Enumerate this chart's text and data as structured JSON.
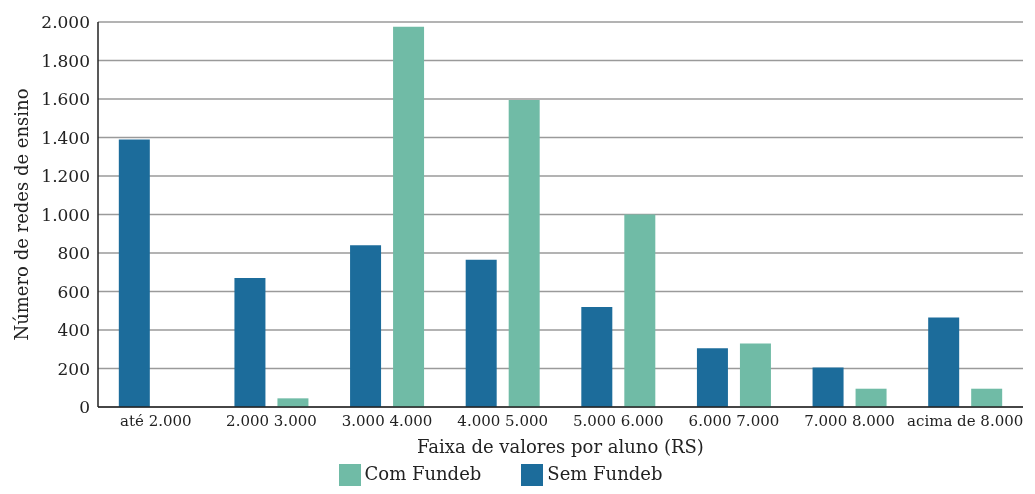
{
  "chart_data": {
    "type": "bar",
    "xlabel": "Faixa de valores por aluno (RS)",
    "ylabel": "Número de redes de ensino",
    "categories": [
      "até 2.000",
      "2.000 3.000",
      "3.000 4.000",
      "4.000 5.000",
      "5.000 6.000",
      "6.000 7.000",
      "7.000 8.000",
      "acima de 8.000"
    ],
    "series": [
      {
        "name": "Sem Fundeb",
        "color": "#1c6c9b",
        "values": [
          1390,
          670,
          840,
          765,
          520,
          305,
          205,
          465
        ]
      },
      {
        "name": "Com Fundeb",
        "color": "#70bba6",
        "values": [
          null,
          45,
          1975,
          1595,
          1000,
          330,
          95,
          95
        ]
      }
    ],
    "ylim": [
      0,
      2000
    ],
    "yticks": [
      0,
      200,
      400,
      600,
      800,
      {
        "value": 1000,
        "label": "1.000"
      },
      {
        "value": 1200,
        "label": "1.200"
      },
      {
        "value": 1400,
        "label": "1.400"
      },
      {
        "value": 1600,
        "label": "1.600"
      },
      {
        "value": 1800,
        "label": "1.800"
      },
      {
        "value": 2000,
        "label": "2.000"
      }
    ],
    "grid": "y",
    "legend": "bottom"
  }
}
